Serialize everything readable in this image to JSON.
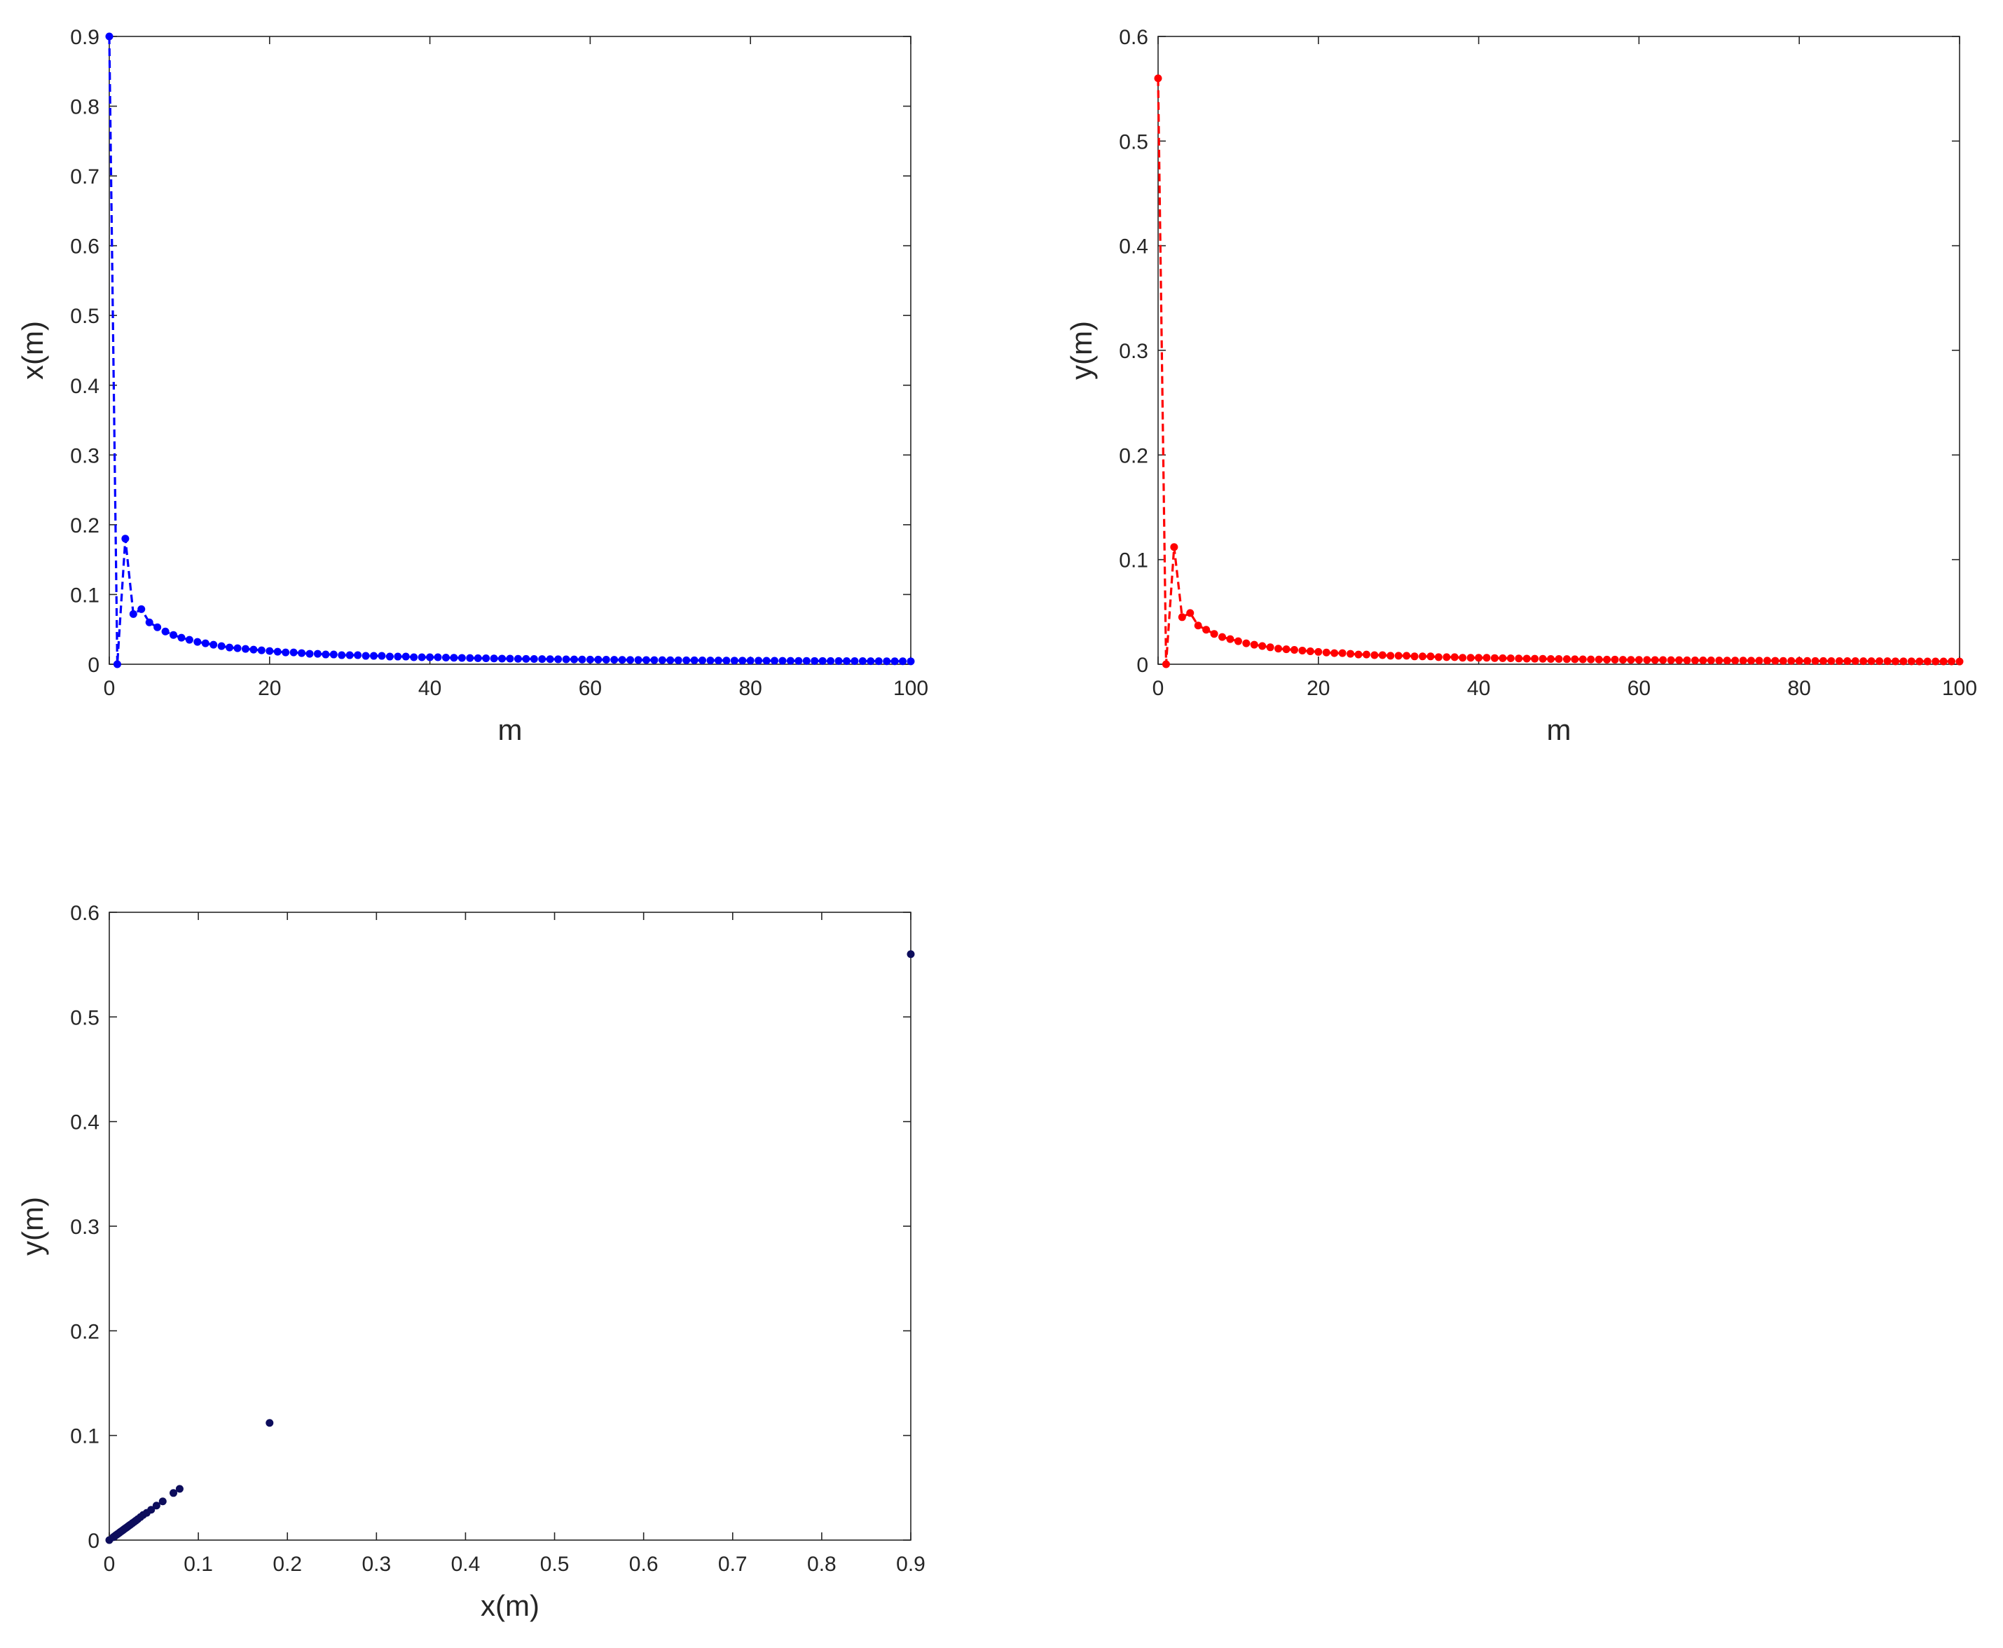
{
  "figure": {
    "background": "#ffffff"
  },
  "chart_data": [
    {
      "type": "line",
      "xlabel": "m",
      "ylabel": "x(m)",
      "xlim": [
        0,
        100
      ],
      "ylim": [
        0,
        0.9
      ],
      "xticks": [
        "0",
        "20",
        "40",
        "60",
        "80",
        "100"
      ],
      "yticks": [
        "0",
        "0.1",
        "0.2",
        "0.3",
        "0.4",
        "0.5",
        "0.6",
        "0.7",
        "0.8",
        "0.9"
      ],
      "grid": false,
      "line_style": "dashed",
      "marker": "dot",
      "color": "#0000ff",
      "series": [
        {
          "x": [
            0,
            1,
            2,
            3,
            4,
            5,
            6,
            7,
            8,
            9,
            10,
            11,
            12,
            13,
            14,
            15,
            16,
            17,
            18,
            19,
            20,
            21,
            22,
            23,
            24,
            25,
            26,
            27,
            28,
            29,
            30,
            31,
            32,
            33,
            34,
            35,
            36,
            37,
            38,
            39,
            40,
            41,
            42,
            43,
            44,
            45,
            46,
            47,
            48,
            49,
            50,
            51,
            52,
            53,
            54,
            55,
            56,
            57,
            58,
            59,
            60,
            61,
            62,
            63,
            64,
            65,
            66,
            67,
            68,
            69,
            70,
            71,
            72,
            73,
            74,
            75,
            76,
            77,
            78,
            79,
            80,
            81,
            82,
            83,
            84,
            85,
            86,
            87,
            88,
            89,
            90,
            91,
            92,
            93,
            94,
            95,
            96,
            97,
            98,
            99,
            100
          ],
          "values": [
            0.9,
            0,
            0.18,
            0.072,
            0.079,
            0.06,
            0.053,
            0.047,
            0.042,
            0.038,
            0.035,
            0.032,
            0.03,
            0.028,
            0.026,
            0.024,
            0.023,
            0.022,
            0.021,
            0.02,
            0.019,
            0.018,
            0.017,
            0.017,
            0.016,
            0.015,
            0.015,
            0.014,
            0.014,
            0.013,
            0.013,
            0.013,
            0.012,
            0.012,
            0.012,
            0.011,
            0.011,
            0.011,
            0.01,
            0.01,
            0.01,
            0.01,
            0.0095,
            0.0093,
            0.0091,
            0.0089,
            0.0087,
            0.0085,
            0.0083,
            0.0081,
            0.008,
            0.0078,
            0.0077,
            0.0075,
            0.0074,
            0.0073,
            0.0071,
            0.007,
            0.0069,
            0.0068,
            0.0067,
            0.0066,
            0.0065,
            0.0064,
            0.0063,
            0.0062,
            0.0061,
            0.006,
            0.0059,
            0.0059,
            0.0058,
            0.0057,
            0.0056,
            0.0056,
            0.0055,
            0.0054,
            0.0054,
            0.0053,
            0.0052,
            0.0052,
            0.0051,
            0.0051,
            0.005,
            0.005,
            0.0049,
            0.0049,
            0.0048,
            0.0048,
            0.0047,
            0.0047,
            0.0046,
            0.0046,
            0.0045,
            0.0045,
            0.0045,
            0.0044,
            0.0044,
            0.0043,
            0.0043,
            0.0043,
            0.0042
          ]
        }
      ]
    },
    {
      "type": "line",
      "xlabel": "m",
      "ylabel": "y(m)",
      "xlim": [
        0,
        100
      ],
      "ylim": [
        0,
        0.6
      ],
      "xticks": [
        "0",
        "20",
        "40",
        "60",
        "80",
        "100"
      ],
      "yticks": [
        "0",
        "0.1",
        "0.2",
        "0.3",
        "0.4",
        "0.5",
        "0.6"
      ],
      "grid": false,
      "line_style": "dashed",
      "marker": "dot",
      "color": "#ff0000",
      "series": [
        {
          "x": [
            0,
            1,
            2,
            3,
            4,
            5,
            6,
            7,
            8,
            9,
            10,
            11,
            12,
            13,
            14,
            15,
            16,
            17,
            18,
            19,
            20,
            21,
            22,
            23,
            24,
            25,
            26,
            27,
            28,
            29,
            30,
            31,
            32,
            33,
            34,
            35,
            36,
            37,
            38,
            39,
            40,
            41,
            42,
            43,
            44,
            45,
            46,
            47,
            48,
            49,
            50,
            51,
            52,
            53,
            54,
            55,
            56,
            57,
            58,
            59,
            60,
            61,
            62,
            63,
            64,
            65,
            66,
            67,
            68,
            69,
            70,
            71,
            72,
            73,
            74,
            75,
            76,
            77,
            78,
            79,
            80,
            81,
            82,
            83,
            84,
            85,
            86,
            87,
            88,
            89,
            90,
            91,
            92,
            93,
            94,
            95,
            96,
            97,
            98,
            99,
            100
          ],
          "values": [
            0.56,
            0,
            0.112,
            0.045,
            0.049,
            0.037,
            0.033,
            0.029,
            0.026,
            0.024,
            0.022,
            0.02,
            0.0187,
            0.0174,
            0.0162,
            0.0149,
            0.0143,
            0.0137,
            0.0131,
            0.0124,
            0.0118,
            0.0112,
            0.0106,
            0.0106,
            0.01,
            0.0093,
            0.0093,
            0.0087,
            0.0087,
            0.0081,
            0.0081,
            0.0081,
            0.0075,
            0.0075,
            0.0075,
            0.0068,
            0.0068,
            0.0068,
            0.0062,
            0.0062,
            0.0062,
            0.0062,
            0.0059,
            0.0058,
            0.0057,
            0.0055,
            0.0054,
            0.0053,
            0.0052,
            0.005,
            0.005,
            0.0049,
            0.0048,
            0.0047,
            0.0046,
            0.0045,
            0.0044,
            0.0044,
            0.0043,
            0.0042,
            0.0042,
            0.0041,
            0.004,
            0.004,
            0.0039,
            0.0039,
            0.0038,
            0.0037,
            0.0037,
            0.0037,
            0.0036,
            0.0035,
            0.0035,
            0.0035,
            0.0034,
            0.0034,
            0.0034,
            0.0033,
            0.0032,
            0.0032,
            0.0032,
            0.0032,
            0.0031,
            0.0031,
            0.003,
            0.003,
            0.003,
            0.003,
            0.0029,
            0.0029,
            0.0029,
            0.0029,
            0.0028,
            0.0028,
            0.0028,
            0.0027,
            0.0027,
            0.0027,
            0.0027,
            0.0027,
            0.0026
          ]
        }
      ]
    },
    {
      "type": "scatter",
      "xlabel": "x(m)",
      "ylabel": "y(m)",
      "xlim": [
        0,
        0.9
      ],
      "ylim": [
        0,
        0.6
      ],
      "xticks": [
        "0",
        "0.1",
        "0.2",
        "0.3",
        "0.4",
        "0.5",
        "0.6",
        "0.7",
        "0.8",
        "0.9"
      ],
      "yticks": [
        "0",
        "0.1",
        "0.2",
        "0.3",
        "0.4",
        "0.5",
        "0.6"
      ],
      "grid": false,
      "marker": "dot",
      "color": "#0d0d5c",
      "series": [
        {
          "x": [
            0.9,
            0,
            0.18,
            0.072,
            0.079,
            0.06,
            0.053,
            0.047,
            0.042,
            0.038,
            0.035,
            0.032,
            0.03,
            0.028,
            0.026,
            0.024,
            0.023,
            0.022,
            0.021,
            0.02,
            0.019,
            0.018,
            0.017,
            0.016,
            0.015,
            0.014,
            0.013,
            0.012,
            0.011,
            0.01,
            0.009,
            0.008,
            0.007,
            0.006,
            0.005,
            0.0045
          ],
          "values": [
            0.56,
            0,
            0.112,
            0.045,
            0.049,
            0.037,
            0.033,
            0.029,
            0.026,
            0.024,
            0.022,
            0.02,
            0.0187,
            0.0174,
            0.0162,
            0.0149,
            0.0143,
            0.0137,
            0.0131,
            0.0124,
            0.0118,
            0.0112,
            0.0106,
            0.01,
            0.0093,
            0.0087,
            0.0081,
            0.0075,
            0.0068,
            0.0062,
            0.0056,
            0.005,
            0.0044,
            0.0037,
            0.0031,
            0.0028
          ]
        }
      ]
    }
  ]
}
